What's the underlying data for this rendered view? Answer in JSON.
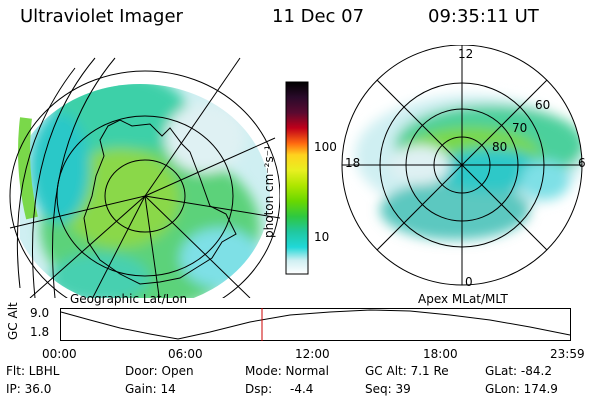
{
  "header": {
    "instrument": "Ultraviolet Imager",
    "date": "11 Dec 07",
    "time": "09:35:11 UT"
  },
  "left_panel": {
    "caption": "Geographic Lat/Lon"
  },
  "right_panel": {
    "caption": "Apex MLat/MLT",
    "mlt_labels": [
      "12",
      "18",
      "6",
      "0"
    ],
    "lat_labels": [
      "60",
      "70",
      "80"
    ]
  },
  "colorbar": {
    "unit_label": "photon cm⁻²s⁻¹",
    "ticks": [
      "100",
      "10"
    ],
    "colors": [
      "#000000",
      "#2a0a2a",
      "#5a0a30",
      "#8a0a20",
      "#c0001a",
      "#e62a14",
      "#ff6a10",
      "#ffa010",
      "#ffd21e",
      "#e8f020",
      "#aee600",
      "#6ad800",
      "#2ec840",
      "#20c8a0",
      "#20d8d8",
      "#7ae2ea",
      "#cfeff2",
      "#ffffff"
    ]
  },
  "timeline": {
    "ylabel": "GC Alt",
    "y_ticks": [
      "9.0",
      "1.8"
    ],
    "x_ticks": [
      "00:00",
      "06:00",
      "12:00",
      "18:00",
      "23:59"
    ],
    "marker_color": "#cc0000"
  },
  "info": {
    "rows": [
      [
        "Flt: LBHL",
        "Door: Open",
        "Mode: Normal",
        "GC Alt: 7.1 Re",
        "GLat: -84.2"
      ],
      [
        "IP: 36.0",
        "Gain: 14",
        "Dsp:",
        "-4.4",
        "Seq: 39",
        "GLon: 174.9"
      ]
    ]
  }
}
